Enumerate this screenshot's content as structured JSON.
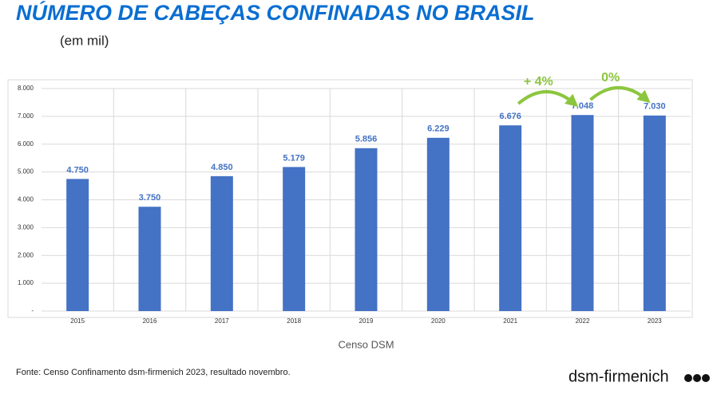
{
  "title": "NÚMERO DE CABEÇAS CONFINADAS NO BRASIL",
  "subtitle": "(em mil)",
  "source": "Fonte: Censo Confinamento dsm-firmenich 2023, resultado novembro.",
  "logo": "dsm-firmenich",
  "chart_data": {
    "type": "bar",
    "categories": [
      "2015",
      "2016",
      "2017",
      "2018",
      "2019",
      "2020",
      "2021",
      "2022",
      "2023"
    ],
    "values": [
      4750,
      3750,
      4850,
      5179,
      5856,
      6229,
      6676,
      7048,
      7030
    ],
    "value_labels": [
      "4.750",
      "3.750",
      "4.850",
      "5.179",
      "5.856",
      "6.229",
      "6.676",
      "7.048",
      "7.030"
    ],
    "color": "#4472c4",
    "x_label": "Censo DSM",
    "ylim": [
      0,
      8000
    ],
    "yticks": [
      {
        "value": 0,
        "label": "-"
      },
      {
        "value": 1000,
        "label": "1.000"
      },
      {
        "value": 2000,
        "label": "2.000"
      },
      {
        "value": 3000,
        "label": "3.000"
      },
      {
        "value": 4000,
        "label": "4.000"
      },
      {
        "value": 5000,
        "label": "5.000"
      },
      {
        "value": 6000,
        "label": "6.000"
      },
      {
        "value": 7000,
        "label": "7.000"
      },
      {
        "value": 8000,
        "label": "8.000"
      }
    ],
    "grid": true,
    "annotations": [
      {
        "text": "+ 4%"
      },
      {
        "text": "0%"
      }
    ]
  }
}
